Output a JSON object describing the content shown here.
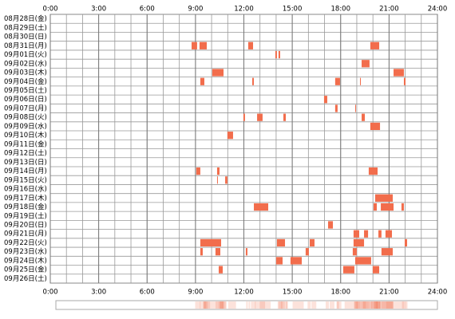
{
  "chart_data": {
    "type": "timeline",
    "categories": [
      "08月28日(金)",
      "08月29日(土)",
      "08月30日(日)",
      "08月31日(月)",
      "09月01日(火)",
      "09月02日(水)",
      "09月03日(木)",
      "09月04日(金)",
      "09月05日(土)",
      "09月06日(日)",
      "09月07日(月)",
      "09月08日(火)",
      "09月09日(水)",
      "09月10日(木)",
      "09月11日(金)",
      "09月12日(土)",
      "09月13日(日)",
      "09月14日(月)",
      "09月15日(火)",
      "09月16日(水)",
      "09月17日(木)",
      "09月18日(金)",
      "09月19日(土)",
      "09月20日(日)",
      "09月21日(月)",
      "09月22日(火)",
      "09月23日(水)",
      "09月24日(木)",
      "09月25日(金)",
      "09月26日(土)"
    ],
    "intervals": [
      [],
      [],
      [],
      [
        [
          8.76,
          9.1
        ],
        [
          9.25,
          9.7
        ],
        [
          12.27,
          12.57
        ],
        [
          19.84,
          20.39
        ]
      ],
      [
        [
          13.95,
          14.05
        ],
        [
          14.15,
          14.25
        ]
      ],
      [
        [
          19.3,
          19.79
        ]
      ],
      [
        [
          10.04,
          10.74
        ],
        [
          21.28,
          21.92
        ]
      ],
      [
        [
          9.3,
          9.55
        ],
        [
          12.52,
          12.62
        ],
        [
          17.66,
          17.96
        ],
        [
          19.2,
          19.25
        ],
        [
          21.92,
          22.02
        ]
      ],
      [],
      [
        [
          16.97,
          17.17
        ]
      ],
      [
        [
          17.66,
          17.81
        ],
        [
          18.9,
          18.95
        ]
      ],
      [
        [
          11.97,
          12.07
        ],
        [
          12.82,
          13.16
        ],
        [
          14.45,
          14.6
        ],
        [
          19.3,
          19.5
        ]
      ],
      [
        [
          19.84,
          20.44
        ]
      ],
      [
        [
          10.98,
          11.33
        ]
      ],
      [],
      [],
      [],
      [
        [
          9.05,
          9.3
        ],
        [
          10.34,
          10.49
        ],
        [
          19.74,
          20.29
        ]
      ],
      [
        [
          10.34,
          10.39
        ],
        [
          10.84,
          10.98
        ]
      ],
      [],
      [
        [
          20.14,
          21.23
        ]
      ],
      [
        [
          12.62,
          13.51
        ],
        [
          20.04,
          20.24
        ],
        [
          20.49,
          21.28
        ],
        [
          21.77,
          21.92
        ]
      ],
      [],
      [
        [
          17.22,
          17.52
        ]
      ],
      [
        [
          18.8,
          19.15
        ],
        [
          19.45,
          19.7
        ],
        [
          20.34,
          20.53
        ],
        [
          20.78,
          21.18
        ]
      ],
      [
        [
          9.3,
          10.59
        ],
        [
          14.05,
          14.55
        ],
        [
          16.08,
          16.38
        ],
        [
          18.8,
          19.45
        ],
        [
          21.97,
          22.12
        ]
      ],
      [
        [
          9.3,
          9.45
        ],
        [
          10.24,
          10.54
        ],
        [
          12.12,
          12.22
        ],
        [
          15.83,
          16.03
        ],
        [
          18.75,
          19.0
        ],
        [
          20.53,
          21.23
        ]
      ],
      [
        [
          14.0,
          14.4
        ],
        [
          14.89,
          15.59
        ],
        [
          18.9,
          19.89
        ]
      ],
      [
        [
          10.44,
          10.69
        ],
        [
          18.16,
          18.85
        ],
        [
          19.99,
          20.39
        ]
      ],
      []
    ],
    "color": "#f26d4c",
    "xlim": [
      0,
      24
    ],
    "xticks": [
      {
        "value": 0,
        "label": "0:00"
      },
      {
        "value": 3,
        "label": "3:00"
      },
      {
        "value": 6,
        "label": "6:00"
      },
      {
        "value": 9,
        "label": "9:00"
      },
      {
        "value": 12,
        "label": "12:00"
      },
      {
        "value": 15,
        "label": "15:00"
      },
      {
        "value": 18,
        "label": "18:00"
      },
      {
        "value": 21,
        "label": "21:00"
      },
      {
        "value": 24,
        "label": "24:00"
      }
    ],
    "grid": true
  }
}
